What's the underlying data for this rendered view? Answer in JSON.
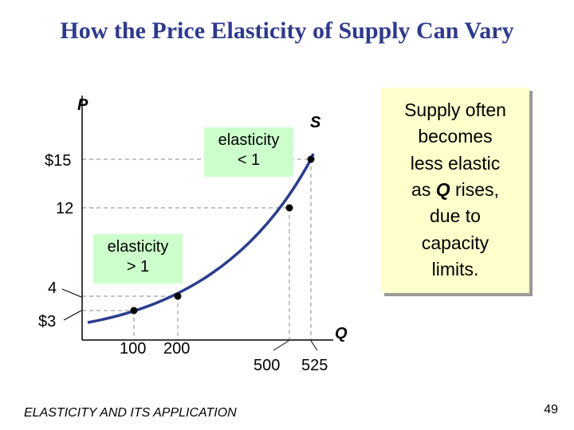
{
  "slide": {
    "title": "How the Price Elasticity of Supply Can Vary",
    "footer": "ELASTICITY AND ITS APPLICATION",
    "page_number": "49"
  },
  "callouts": {
    "inelastic": [
      "elasticity",
      "< 1"
    ],
    "elastic": [
      "elasticity",
      "> 1"
    ],
    "note": [
      "Supply often",
      "becomes",
      "less elastic",
      "as Q rises,",
      "due to",
      "capacity",
      "limits."
    ]
  },
  "chart_data": {
    "type": "line",
    "title": "",
    "xlabel": "Q",
    "ylabel": "P",
    "curve_label": "S",
    "colors": {
      "curve": "#2b3d8f",
      "guides": "#888888",
      "axis": "#000000",
      "points": "#000000"
    },
    "points": [
      {
        "q": 100,
        "p": 3,
        "x_label": "100",
        "y_label": "$3"
      },
      {
        "q": 200,
        "p": 4,
        "x_label": "200",
        "y_label": "4"
      },
      {
        "q": 500,
        "p": 12,
        "x_label": "500",
        "y_label": "12"
      },
      {
        "q": 525,
        "p": 15,
        "x_label": "525",
        "y_label": "$15"
      }
    ]
  }
}
